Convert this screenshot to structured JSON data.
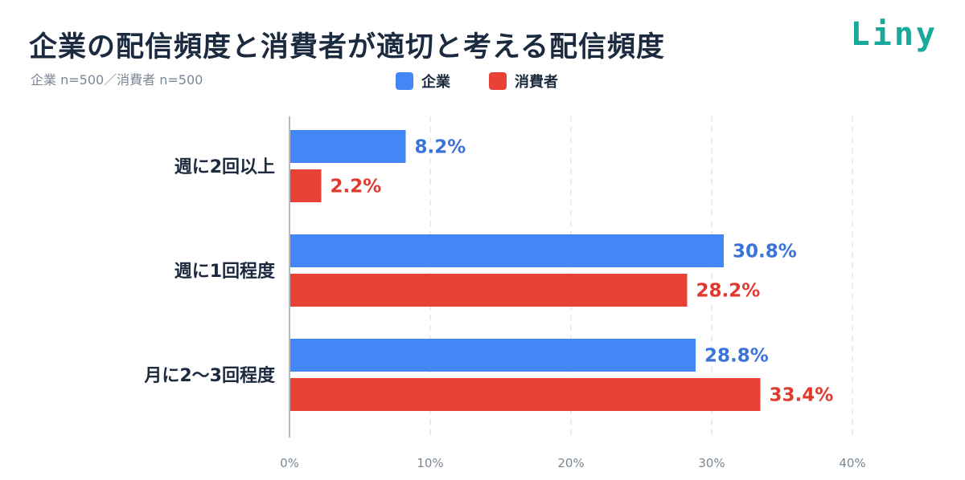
{
  "header": {
    "title": "企業の配信頻度と消費者が適切と考える配信頻度",
    "subtitle": "企業 n=500／消費者 n=500",
    "logo_text": "Liny"
  },
  "colors": {
    "company": "#4287f5",
    "consumer": "#e84135",
    "company_text": "#3b74d8",
    "consumer_text": "#e03a2e",
    "grid": "#d6d9de",
    "axis": "#9aa3ad"
  },
  "chart_data": {
    "type": "bar",
    "orientation": "horizontal",
    "categories": [
      "週に2回以上",
      "週に1回程度",
      "月に2〜3回程度"
    ],
    "series": [
      {
        "name": "企業",
        "values": [
          8.2,
          30.8,
          28.8
        ],
        "labels": [
          "8.2%",
          "30.8%",
          "28.8%"
        ]
      },
      {
        "name": "消費者",
        "values": [
          2.2,
          28.2,
          33.4
        ],
        "labels": [
          "2.2%",
          "28.2%",
          "33.4%"
        ]
      }
    ],
    "xlim": [
      0,
      40
    ],
    "ticks": [
      0,
      10,
      20,
      30,
      40
    ],
    "tick_labels": [
      "0%",
      "10%",
      "20%",
      "30%",
      "40%"
    ],
    "grid": true,
    "legend": "top-center"
  }
}
